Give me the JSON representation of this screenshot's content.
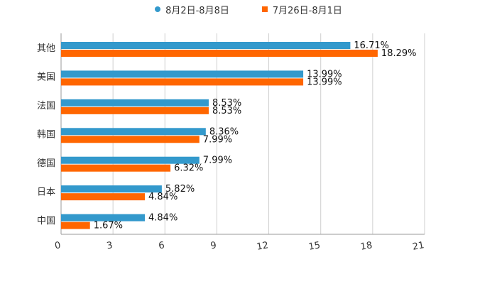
{
  "chart_data": {
    "type": "bar",
    "orientation": "horizontal",
    "categories": [
      "其他",
      "美国",
      "法国",
      "韩国",
      "德国",
      "日本",
      "中国"
    ],
    "series": [
      {
        "name": "8月2日-8月8日",
        "color": "#3399cc",
        "marker": "circle",
        "values": [
          16.71,
          13.99,
          8.53,
          8.36,
          7.99,
          5.82,
          4.84
        ],
        "labels": [
          "16.71%",
          "13.99%",
          "8.53%",
          "8.36%",
          "7.99%",
          "5.82%",
          "4.84%"
        ]
      },
      {
        "name": "7月26日-8月1日",
        "color": "#ff6600",
        "marker": "square",
        "values": [
          18.29,
          13.99,
          8.53,
          7.99,
          6.32,
          4.84,
          1.67
        ],
        "labels": [
          "18.29%",
          "13.99%",
          "8.53%",
          "7.99%",
          "6.32%",
          "4.84%",
          "1.67%"
        ]
      }
    ],
    "x_ticks": [
      "0",
      "3",
      "6",
      "9",
      "12",
      "15",
      "18",
      "21"
    ],
    "xlim": [
      0,
      21
    ],
    "grid": true,
    "legend": "top-center"
  }
}
